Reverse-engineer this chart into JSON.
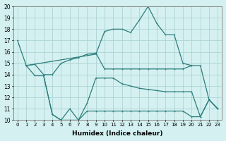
{
  "xlabel": "Humidex (Indice chaleur)",
  "bg_color": "#d4f0f0",
  "grid_color": "#aed4d4",
  "line_color": "#2d7d7d",
  "ylim": [
    10,
    20
  ],
  "xlim": [
    -0.5,
    23.5
  ],
  "line1": {
    "x": [
      0,
      1,
      9,
      10,
      11,
      12,
      13,
      14,
      15,
      16,
      17,
      18,
      19,
      20,
      21,
      22,
      23
    ],
    "y": [
      17.0,
      14.8,
      15.8,
      17.8,
      18.0,
      18.0,
      17.7,
      18.8,
      20.0,
      18.5,
      17.5,
      17.5,
      15.0,
      14.8,
      14.8,
      11.8,
      11.0
    ]
  },
  "line2": {
    "x": [
      1,
      2,
      3,
      4,
      5,
      6,
      7,
      8,
      9,
      10,
      11,
      12,
      13,
      14,
      15,
      16,
      17,
      18,
      19,
      20
    ],
    "y": [
      14.8,
      14.9,
      14.0,
      14.0,
      15.0,
      15.3,
      15.5,
      15.8,
      15.9,
      14.5,
      14.5,
      14.5,
      14.5,
      14.5,
      14.5,
      14.5,
      14.5,
      14.5,
      14.5,
      14.8
    ]
  },
  "line3": {
    "x": [
      1,
      2,
      3,
      4,
      5,
      6,
      7,
      8,
      9,
      10,
      11,
      12,
      13,
      14,
      15,
      16,
      17,
      18,
      19,
      20,
      21,
      22,
      23
    ],
    "y": [
      14.8,
      13.9,
      13.9,
      10.5,
      10.0,
      11.0,
      10.0,
      11.5,
      13.7,
      13.7,
      13.7,
      13.2,
      13.0,
      12.8,
      12.7,
      12.6,
      12.5,
      12.5,
      12.5,
      12.5,
      10.3,
      11.8,
      11.0
    ]
  },
  "line4": {
    "x": [
      3,
      4,
      5,
      6,
      7,
      8,
      9,
      10,
      11,
      12,
      13,
      14,
      15,
      16,
      17,
      18,
      19,
      20,
      21,
      22,
      23
    ],
    "y": [
      13.9,
      10.5,
      10.0,
      10.0,
      10.0,
      10.8,
      10.8,
      10.8,
      10.8,
      10.8,
      10.8,
      10.8,
      10.8,
      10.8,
      10.8,
      10.8,
      10.8,
      10.3,
      10.3,
      11.8,
      11.0
    ]
  }
}
